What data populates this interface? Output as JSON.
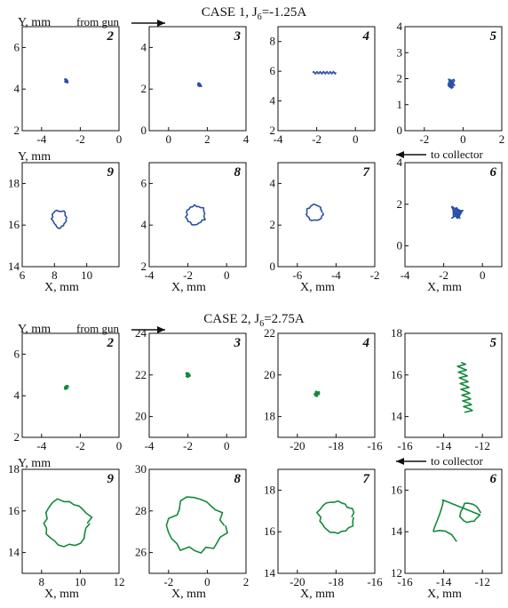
{
  "colors": {
    "case1": "#2a4fa8",
    "case2": "#138a3a",
    "frame": "#111111"
  },
  "cases": [
    {
      "title": "CASE 1,  J",
      "title_sub": "6",
      "title_value": "=-1.25A",
      "y_label": "Y, mm",
      "x_label": "X, mm",
      "from_gun": "from gun",
      "to_collector": "to collector",
      "panels": [
        {
          "id": "2",
          "xlim": [
            -5,
            0
          ],
          "ylim": [
            2,
            7
          ],
          "xticks": [
            -4,
            -2,
            0
          ],
          "yticks": [
            2,
            4,
            6
          ],
          "cx": -2.7,
          "cy": 4.4,
          "r": 0.08,
          "kind": "dot"
        },
        {
          "id": "3",
          "xlim": [
            -1,
            4
          ],
          "ylim": [
            0,
            5
          ],
          "xticks": [
            0,
            2,
            4
          ],
          "yticks": [
            0,
            2,
            4
          ],
          "cx": 1.6,
          "cy": 2.2,
          "r": 0.07,
          "kind": "dot"
        },
        {
          "id": "4",
          "xlim": [
            -4,
            1
          ],
          "ylim": [
            2,
            9
          ],
          "xticks": [
            -4,
            -2,
            0
          ],
          "yticks": [
            2,
            4,
            6,
            8
          ],
          "cx": -1.6,
          "cy": 5.9,
          "r": 0.6,
          "kind": "streak"
        },
        {
          "id": "5",
          "xlim": [
            -3,
            2
          ],
          "ylim": [
            0,
            4
          ],
          "xticks": [
            -2,
            0,
            2
          ],
          "yticks": [
            0,
            1,
            2,
            3,
            4
          ],
          "cx": -0.6,
          "cy": 1.8,
          "r": 0.18,
          "kind": "blob"
        },
        {
          "id": "9",
          "xlim": [
            6,
            12
          ],
          "ylim": [
            14,
            19
          ],
          "xticks": [
            6,
            8,
            10
          ],
          "yticks": [
            14,
            16,
            18
          ],
          "cx": 8.3,
          "cy": 16.3,
          "r": 0.45,
          "kind": "loop"
        },
        {
          "id": "8",
          "xlim": [
            -4,
            1
          ],
          "ylim": [
            2,
            7
          ],
          "xticks": [
            -4,
            -2,
            0
          ],
          "yticks": [
            2,
            4,
            6
          ],
          "cx": -1.6,
          "cy": 4.5,
          "r": 0.5,
          "kind": "loop"
        },
        {
          "id": "7",
          "xlim": [
            -7,
            -2
          ],
          "ylim": [
            0,
            5
          ],
          "xticks": [
            -6,
            -4,
            -2
          ],
          "yticks": [
            0,
            2,
            4
          ],
          "cx": -5.1,
          "cy": 2.6,
          "r": 0.4,
          "kind": "loop"
        },
        {
          "id": "6",
          "xlim": [
            -4,
            1
          ],
          "ylim": [
            -1,
            4
          ],
          "xticks": [
            -4,
            -2,
            0
          ],
          "yticks": [
            0,
            2,
            4
          ],
          "cx": -1.3,
          "cy": 1.6,
          "r": 0.3,
          "kind": "blob"
        }
      ]
    },
    {
      "title": "CASE 2,  J",
      "title_sub": "6",
      "title_value": "=2.75A",
      "y_label": "Y, mm",
      "x_label": "X, mm",
      "from_gun": "from gun",
      "to_collector": "to collector",
      "panels": [
        {
          "id": "2",
          "xlim": [
            -5,
            0
          ],
          "ylim": [
            2,
            7
          ],
          "xticks": [
            -4,
            -2,
            0
          ],
          "yticks": [
            2,
            4,
            6
          ],
          "cx": -2.7,
          "cy": 4.4,
          "r": 0.08,
          "kind": "dot"
        },
        {
          "id": "3",
          "xlim": [
            -4,
            1
          ],
          "ylim": [
            19,
            24
          ],
          "xticks": [
            -4,
            -2,
            0
          ],
          "yticks": [
            20,
            22,
            24
          ],
          "cx": -2.0,
          "cy": 22.0,
          "r": 0.09,
          "kind": "dot"
        },
        {
          "id": "4",
          "xlim": [
            -21,
            -16
          ],
          "ylim": [
            17,
            22
          ],
          "xticks": [
            -20,
            -18,
            -16
          ],
          "yticks": [
            18,
            20,
            22
          ],
          "cx": -19.0,
          "cy": 19.1,
          "r": 0.12,
          "kind": "dot"
        },
        {
          "id": "5",
          "xlim": [
            -16,
            -11
          ],
          "ylim": [
            13,
            18
          ],
          "xticks": [
            -16,
            -14,
            -12
          ],
          "yticks": [
            14,
            16,
            18
          ],
          "cx": -13.1,
          "cy": 15.4,
          "r": 1.2,
          "kind": "vstreak"
        },
        {
          "id": "9",
          "xlim": [
            7,
            12
          ],
          "ylim": [
            13,
            18
          ],
          "xticks": [
            8,
            10,
            12
          ],
          "yticks": [
            14,
            16,
            18
          ],
          "cx": 9.3,
          "cy": 15.4,
          "r": 1.2,
          "kind": "bigloop"
        },
        {
          "id": "8",
          "xlim": [
            -3,
            2
          ],
          "ylim": [
            25,
            30
          ],
          "xticks": [
            -2,
            0,
            2
          ],
          "yticks": [
            26,
            28,
            30
          ],
          "cx": -0.5,
          "cy": 27.3,
          "r": 1.4,
          "kind": "bigloop"
        },
        {
          "id": "7",
          "xlim": [
            -21,
            -16
          ],
          "ylim": [
            14,
            19
          ],
          "xticks": [
            -20,
            -18,
            -16
          ],
          "yticks": [
            14,
            16,
            18
          ],
          "cx": -18.0,
          "cy": 16.7,
          "r": 0.9,
          "kind": "bigloop"
        },
        {
          "id": "6",
          "xlim": [
            -16,
            -11
          ],
          "ylim": [
            12,
            17
          ],
          "xticks": [
            -16,
            -14,
            -12
          ],
          "yticks": [
            12,
            14,
            16
          ],
          "cx": -13.2,
          "cy": 15.0,
          "r": 0.7,
          "kind": "tail"
        }
      ]
    }
  ]
}
